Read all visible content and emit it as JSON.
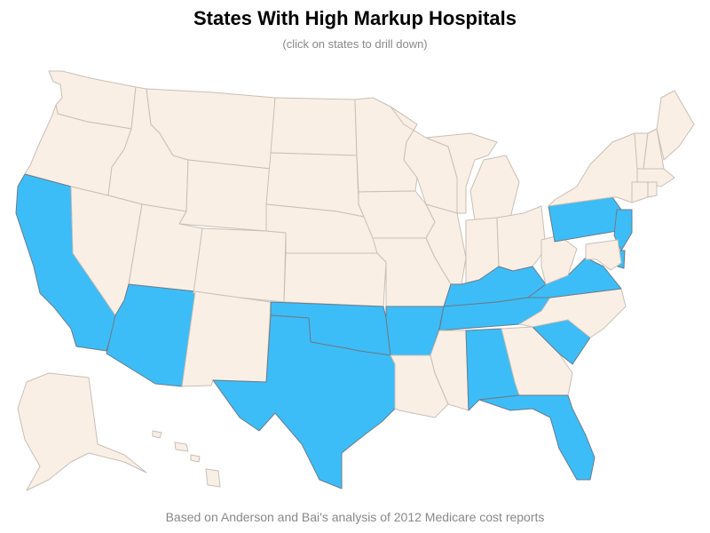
{
  "title": "States With High Markup Hospitals",
  "subtitle": "(click on states to drill down)",
  "footnote": "Based on Anderson and Bai's analysis of 2012 Medicare cost reports",
  "colors": {
    "base": "#faefe5",
    "highlight": "#3dbdf7",
    "border": "#c8bfb6",
    "highlight_border": "#6b7b8a"
  },
  "states": [
    {
      "name": "WA",
      "high": false
    },
    {
      "name": "OR",
      "high": false
    },
    {
      "name": "CA",
      "high": true
    },
    {
      "name": "ID",
      "high": false
    },
    {
      "name": "NV",
      "high": false
    },
    {
      "name": "MT",
      "high": false
    },
    {
      "name": "WY",
      "high": false
    },
    {
      "name": "UT",
      "high": false
    },
    {
      "name": "AZ",
      "high": true
    },
    {
      "name": "CO",
      "high": false
    },
    {
      "name": "NM",
      "high": false
    },
    {
      "name": "ND",
      "high": false
    },
    {
      "name": "SD",
      "high": false
    },
    {
      "name": "NE",
      "high": false
    },
    {
      "name": "KS",
      "high": false
    },
    {
      "name": "OK",
      "high": true
    },
    {
      "name": "TX",
      "high": true
    },
    {
      "name": "MN",
      "high": false
    },
    {
      "name": "IA",
      "high": false
    },
    {
      "name": "MO",
      "high": false
    },
    {
      "name": "AR",
      "high": true
    },
    {
      "name": "LA",
      "high": false
    },
    {
      "name": "WI",
      "high": false
    },
    {
      "name": "IL",
      "high": false
    },
    {
      "name": "MI",
      "high": false
    },
    {
      "name": "IN",
      "high": false
    },
    {
      "name": "OH",
      "high": false
    },
    {
      "name": "KY",
      "high": true
    },
    {
      "name": "TN",
      "high": true
    },
    {
      "name": "MS",
      "high": false
    },
    {
      "name": "AL",
      "high": true
    },
    {
      "name": "GA",
      "high": false
    },
    {
      "name": "FL",
      "high": true
    },
    {
      "name": "SC",
      "high": true
    },
    {
      "name": "NC",
      "high": false
    },
    {
      "name": "VA",
      "high": true
    },
    {
      "name": "WV",
      "high": false
    },
    {
      "name": "PA",
      "high": true
    },
    {
      "name": "NY",
      "high": false
    },
    {
      "name": "NJ",
      "high": true
    },
    {
      "name": "DE",
      "high": true
    },
    {
      "name": "MD",
      "high": false
    },
    {
      "name": "VT",
      "high": false
    },
    {
      "name": "NH",
      "high": false
    },
    {
      "name": "ME",
      "high": false
    },
    {
      "name": "MA",
      "high": false
    },
    {
      "name": "CT",
      "high": false
    },
    {
      "name": "RI",
      "high": false
    },
    {
      "name": "AK",
      "high": false
    },
    {
      "name": "HI",
      "high": false
    }
  ]
}
